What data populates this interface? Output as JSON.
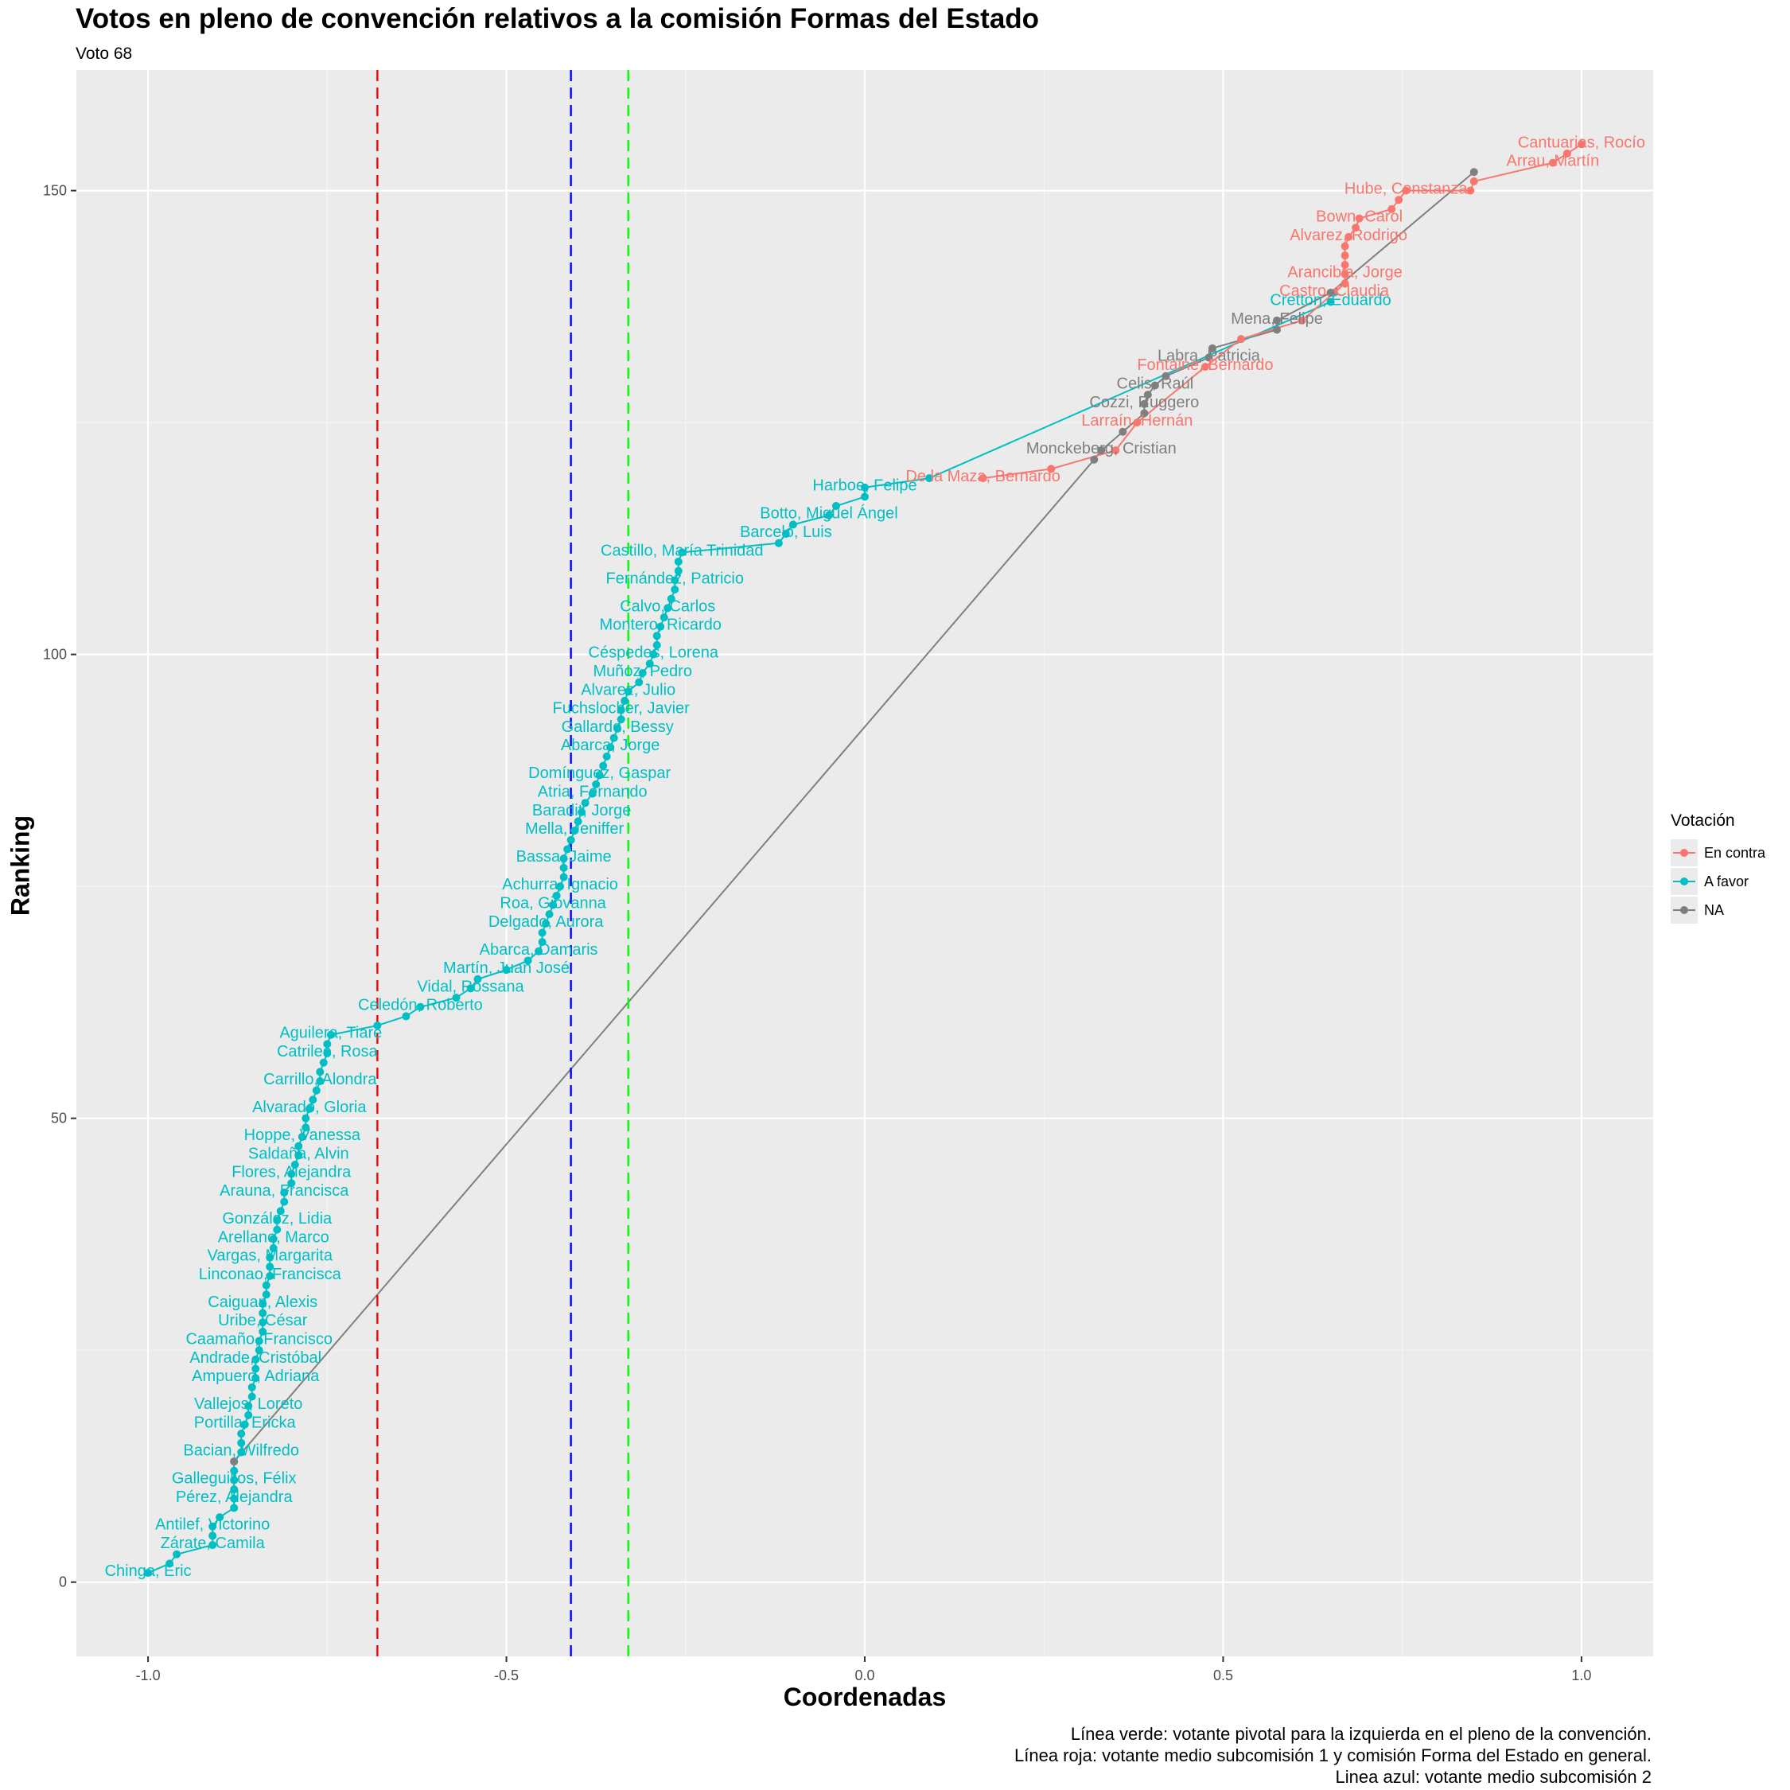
{
  "chart_data": {
    "type": "scatter",
    "title": "Votos en pleno de convención relativos a la comisión Formas del Estado",
    "subtitle": "Voto 68",
    "xlabel": "Coordenadas",
    "ylabel": "Ranking",
    "xlim": [
      -1.1,
      1.1
    ],
    "ylim": [
      -8,
      163
    ],
    "x_ticks": [
      -1.0,
      -0.5,
      0.0,
      0.5,
      1.0
    ],
    "x_tick_labels": [
      "-1.0",
      "-0.5",
      "0.0",
      "0.5",
      "1.0"
    ],
    "y_ticks": [
      0,
      50,
      100,
      150
    ],
    "y_tick_labels": [
      "0",
      "50",
      "100",
      "150"
    ],
    "grid": true,
    "legend": {
      "title": "Votación",
      "placement": "right",
      "entries": [
        {
          "label": "En contra",
          "color": "#F8766D"
        },
        {
          "label": "A favor",
          "color": "#00BFC4"
        },
        {
          "label": "NA",
          "color": "#7F7F7F"
        }
      ]
    },
    "vlines": [
      {
        "x": -0.68,
        "color": "#FF0000"
      },
      {
        "x": -0.41,
        "color": "#0000FF"
      },
      {
        "x": -0.33,
        "color": "#00FF00"
      }
    ],
    "captions": [
      "Línea verde: votante pivotal para la izquierda en el pleno de la convención.",
      "Línea roja: votante medio subcomisión 1 y comisión Forma del Estado en general.",
      "Linea azul: votante medio subcomisión 2"
    ],
    "series": [
      {
        "name": "A favor",
        "color": "#00BFC4",
        "points": [
          {
            "x": -1.0,
            "y": 1,
            "label": "Chinga, Eric"
          },
          {
            "x": -0.97,
            "y": 2
          },
          {
            "x": -0.96,
            "y": 3
          },
          {
            "x": -0.91,
            "y": 4,
            "label": "Zárate, Camila"
          },
          {
            "x": -0.91,
            "y": 5
          },
          {
            "x": -0.91,
            "y": 6,
            "label": "Antilef, Victorino"
          },
          {
            "x": -0.9,
            "y": 7
          },
          {
            "x": -0.88,
            "y": 8
          },
          {
            "x": -0.88,
            "y": 9,
            "label": "Pérez, Alejandra"
          },
          {
            "x": -0.88,
            "y": 10
          },
          {
            "x": -0.88,
            "y": 11,
            "label": "Galleguillos, Félix"
          },
          {
            "x": -0.88,
            "y": 12
          },
          {
            "x": -0.88,
            "y": 13
          },
          {
            "x": -0.87,
            "y": 14,
            "label": "Bacian, Wilfredo"
          },
          {
            "x": -0.87,
            "y": 15
          },
          {
            "x": -0.87,
            "y": 16
          },
          {
            "x": -0.865,
            "y": 17,
            "label": "Portilla, Ericka"
          },
          {
            "x": -0.86,
            "y": 18
          },
          {
            "x": -0.86,
            "y": 19,
            "label": "Vallejos, Loreto"
          },
          {
            "x": -0.855,
            "y": 20
          },
          {
            "x": -0.855,
            "y": 21
          },
          {
            "x": -0.85,
            "y": 22,
            "label": "Ampuero, Adriana"
          },
          {
            "x": -0.85,
            "y": 23
          },
          {
            "x": -0.85,
            "y": 24,
            "label": "Andrade, Cristóbal"
          },
          {
            "x": -0.845,
            "y": 25
          },
          {
            "x": -0.845,
            "y": 26,
            "label": "Caamaño, Francisco"
          },
          {
            "x": -0.84,
            "y": 27
          },
          {
            "x": -0.84,
            "y": 28,
            "label": "Uribe, César"
          },
          {
            "x": -0.84,
            "y": 29
          },
          {
            "x": -0.84,
            "y": 30,
            "label": "Caiguan, Alexis"
          },
          {
            "x": -0.835,
            "y": 31
          },
          {
            "x": -0.835,
            "y": 32
          },
          {
            "x": -0.83,
            "y": 33,
            "label": "Linconao, Francisca"
          },
          {
            "x": -0.83,
            "y": 34
          },
          {
            "x": -0.83,
            "y": 35,
            "label": "Vargas, Margarita"
          },
          {
            "x": -0.825,
            "y": 36
          },
          {
            "x": -0.825,
            "y": 37,
            "label": "Arellano, Marco"
          },
          {
            "x": -0.82,
            "y": 38
          },
          {
            "x": -0.82,
            "y": 39,
            "label": "González, Lidia"
          },
          {
            "x": -0.815,
            "y": 40
          },
          {
            "x": -0.81,
            "y": 41
          },
          {
            "x": -0.81,
            "y": 42,
            "label": "Arauna, Francisca"
          },
          {
            "x": -0.8,
            "y": 43
          },
          {
            "x": -0.8,
            "y": 44,
            "label": "Flores, Alejandra"
          },
          {
            "x": -0.795,
            "y": 45
          },
          {
            "x": -0.79,
            "y": 46,
            "label": "Saldaña, Alvin"
          },
          {
            "x": -0.79,
            "y": 47
          },
          {
            "x": -0.785,
            "y": 48,
            "label": "Hoppe, Vanessa"
          },
          {
            "x": -0.78,
            "y": 49
          },
          {
            "x": -0.78,
            "y": 50
          },
          {
            "x": -0.775,
            "y": 51,
            "label": "Alvarado, Gloria"
          },
          {
            "x": -0.77,
            "y": 52
          },
          {
            "x": -0.765,
            "y": 53
          },
          {
            "x": -0.76,
            "y": 54,
            "label": "Carrillo, Alondra"
          },
          {
            "x": -0.76,
            "y": 55
          },
          {
            "x": -0.755,
            "y": 56
          },
          {
            "x": -0.75,
            "y": 57,
            "label": "Catrileo, Rosa"
          },
          {
            "x": -0.75,
            "y": 58
          },
          {
            "x": -0.745,
            "y": 59,
            "label": "Aguilera, Tiare"
          },
          {
            "x": -0.68,
            "y": 60
          },
          {
            "x": -0.64,
            "y": 61
          },
          {
            "x": -0.62,
            "y": 62,
            "label": "Celedón, Roberto"
          },
          {
            "x": -0.57,
            "y": 63
          },
          {
            "x": -0.55,
            "y": 64,
            "label": "Vidal, Rossana"
          },
          {
            "x": -0.54,
            "y": 65
          },
          {
            "x": -0.5,
            "y": 66,
            "label": "Martín, Juan José"
          },
          {
            "x": -0.47,
            "y": 67
          },
          {
            "x": -0.455,
            "y": 68,
            "label": "Abarca, Damaris"
          },
          {
            "x": -0.45,
            "y": 69
          },
          {
            "x": -0.45,
            "y": 70
          },
          {
            "x": -0.445,
            "y": 71,
            "label": "Delgado, Aurora"
          },
          {
            "x": -0.44,
            "y": 72
          },
          {
            "x": -0.435,
            "y": 73,
            "label": "Roa, Giovanna"
          },
          {
            "x": -0.43,
            "y": 74
          },
          {
            "x": -0.425,
            "y": 75,
            "label": "Achurra, Ignacio"
          },
          {
            "x": -0.42,
            "y": 76
          },
          {
            "x": -0.42,
            "y": 77
          },
          {
            "x": -0.42,
            "y": 78,
            "label": "Bassa, Jaime"
          },
          {
            "x": -0.415,
            "y": 79
          },
          {
            "x": -0.41,
            "y": 80
          },
          {
            "x": -0.405,
            "y": 81,
            "label": "Mella, Jeniffer"
          },
          {
            "x": -0.4,
            "y": 82
          },
          {
            "x": -0.395,
            "y": 83,
            "label": "Baradit, Jorge"
          },
          {
            "x": -0.39,
            "y": 84
          },
          {
            "x": -0.38,
            "y": 85,
            "label": "Atria, Fernando"
          },
          {
            "x": -0.375,
            "y": 86
          },
          {
            "x": -0.37,
            "y": 87,
            "label": "Domínguez, Gaspar"
          },
          {
            "x": -0.365,
            "y": 88
          },
          {
            "x": -0.36,
            "y": 89
          },
          {
            "x": -0.355,
            "y": 90,
            "label": "Abarca, Jorge"
          },
          {
            "x": -0.35,
            "y": 91
          },
          {
            "x": -0.345,
            "y": 92,
            "label": "Gallardo, Bessy"
          },
          {
            "x": -0.34,
            "y": 93
          },
          {
            "x": -0.34,
            "y": 94,
            "label": "Fuchslocher, Javier"
          },
          {
            "x": -0.335,
            "y": 95
          },
          {
            "x": -0.33,
            "y": 96,
            "label": "Alvarez, Julio"
          },
          {
            "x": -0.315,
            "y": 97
          },
          {
            "x": -0.31,
            "y": 98,
            "label": "Muñoz, Pedro"
          },
          {
            "x": -0.3,
            "y": 99
          },
          {
            "x": -0.295,
            "y": 100,
            "label": "Céspedes, Lorena"
          },
          {
            "x": -0.29,
            "y": 101
          },
          {
            "x": -0.29,
            "y": 102
          },
          {
            "x": -0.285,
            "y": 103,
            "label": "Montero, Ricardo"
          },
          {
            "x": -0.28,
            "y": 104
          },
          {
            "x": -0.275,
            "y": 105,
            "label": "Calvo, Carlos"
          },
          {
            "x": -0.27,
            "y": 106
          },
          {
            "x": -0.265,
            "y": 107
          },
          {
            "x": -0.265,
            "y": 108,
            "label": "Fernández, Patricio"
          },
          {
            "x": -0.26,
            "y": 109
          },
          {
            "x": -0.26,
            "y": 110
          },
          {
            "x": -0.255,
            "y": 111,
            "label": "Castillo, María Trinidad"
          },
          {
            "x": -0.12,
            "y": 112
          },
          {
            "x": -0.11,
            "y": 113,
            "label": "Barceló, Luis"
          },
          {
            "x": -0.1,
            "y": 114
          },
          {
            "x": -0.05,
            "y": 115,
            "label": "Botto, Miguel Ángel"
          },
          {
            "x": -0.04,
            "y": 116
          },
          {
            "x": 0.0,
            "y": 117
          },
          {
            "x": 0.0,
            "y": 118,
            "label": "Harboe, Felipe"
          },
          {
            "x": 0.09,
            "y": 119
          },
          {
            "x": 0.65,
            "y": 138,
            "label": "Cretton, Eduardo"
          }
        ]
      },
      {
        "name": "En contra",
        "color": "#F8766D",
        "points": [
          {
            "x": 0.165,
            "y": 119,
            "label": "De la Maza, Bernardo"
          },
          {
            "x": 0.26,
            "y": 120
          },
          {
            "x": 0.35,
            "y": 122
          },
          {
            "x": 0.38,
            "y": 125,
            "label": "Larraín, Hernán"
          },
          {
            "x": 0.475,
            "y": 131,
            "label": "Fontaine, Bernardo"
          },
          {
            "x": 0.525,
            "y": 134
          },
          {
            "x": 0.61,
            "y": 136
          },
          {
            "x": 0.655,
            "y": 139,
            "label": "Castro, Claudia"
          },
          {
            "x": 0.67,
            "y": 140
          },
          {
            "x": 0.67,
            "y": 141,
            "label": "Arancibia, Jorge"
          },
          {
            "x": 0.67,
            "y": 142
          },
          {
            "x": 0.67,
            "y": 143
          },
          {
            "x": 0.67,
            "y": 144
          },
          {
            "x": 0.675,
            "y": 145,
            "label": "Alvarez, Rodrigo"
          },
          {
            "x": 0.685,
            "y": 146
          },
          {
            "x": 0.69,
            "y": 147,
            "label": "Bown, Carol"
          },
          {
            "x": 0.735,
            "y": 148
          },
          {
            "x": 0.745,
            "y": 149
          },
          {
            "x": 0.755,
            "y": 150,
            "label": "Hube, Constanza"
          },
          {
            "x": 0.845,
            "y": 150
          },
          {
            "x": 0.85,
            "y": 151
          },
          {
            "x": 0.96,
            "y": 153,
            "label": "Arrau, Martín"
          },
          {
            "x": 0.98,
            "y": 154
          },
          {
            "x": 1.0,
            "y": 155,
            "label": "Cantuarias, Rocío"
          }
        ]
      },
      {
        "name": "NA",
        "color": "#7F7F7F",
        "points": [
          {
            "x": -0.88,
            "y": 13
          },
          {
            "x": 0.32,
            "y": 121
          },
          {
            "x": 0.33,
            "y": 122,
            "label": "Monckeberg, Cristian"
          },
          {
            "x": 0.36,
            "y": 124
          },
          {
            "x": 0.39,
            "y": 126
          },
          {
            "x": 0.39,
            "y": 127,
            "label": "Cozzi, Ruggero"
          },
          {
            "x": 0.395,
            "y": 128
          },
          {
            "x": 0.405,
            "y": 129,
            "label": "Celis, Raúl"
          },
          {
            "x": 0.42,
            "y": 130
          },
          {
            "x": 0.48,
            "y": 132,
            "label": "Labra, Patricia"
          },
          {
            "x": 0.485,
            "y": 133
          },
          {
            "x": 0.575,
            "y": 135
          },
          {
            "x": 0.575,
            "y": 136,
            "label": "Mena, Felipe"
          },
          {
            "x": 0.65,
            "y": 139
          },
          {
            "x": 0.85,
            "y": 152
          }
        ]
      }
    ]
  }
}
